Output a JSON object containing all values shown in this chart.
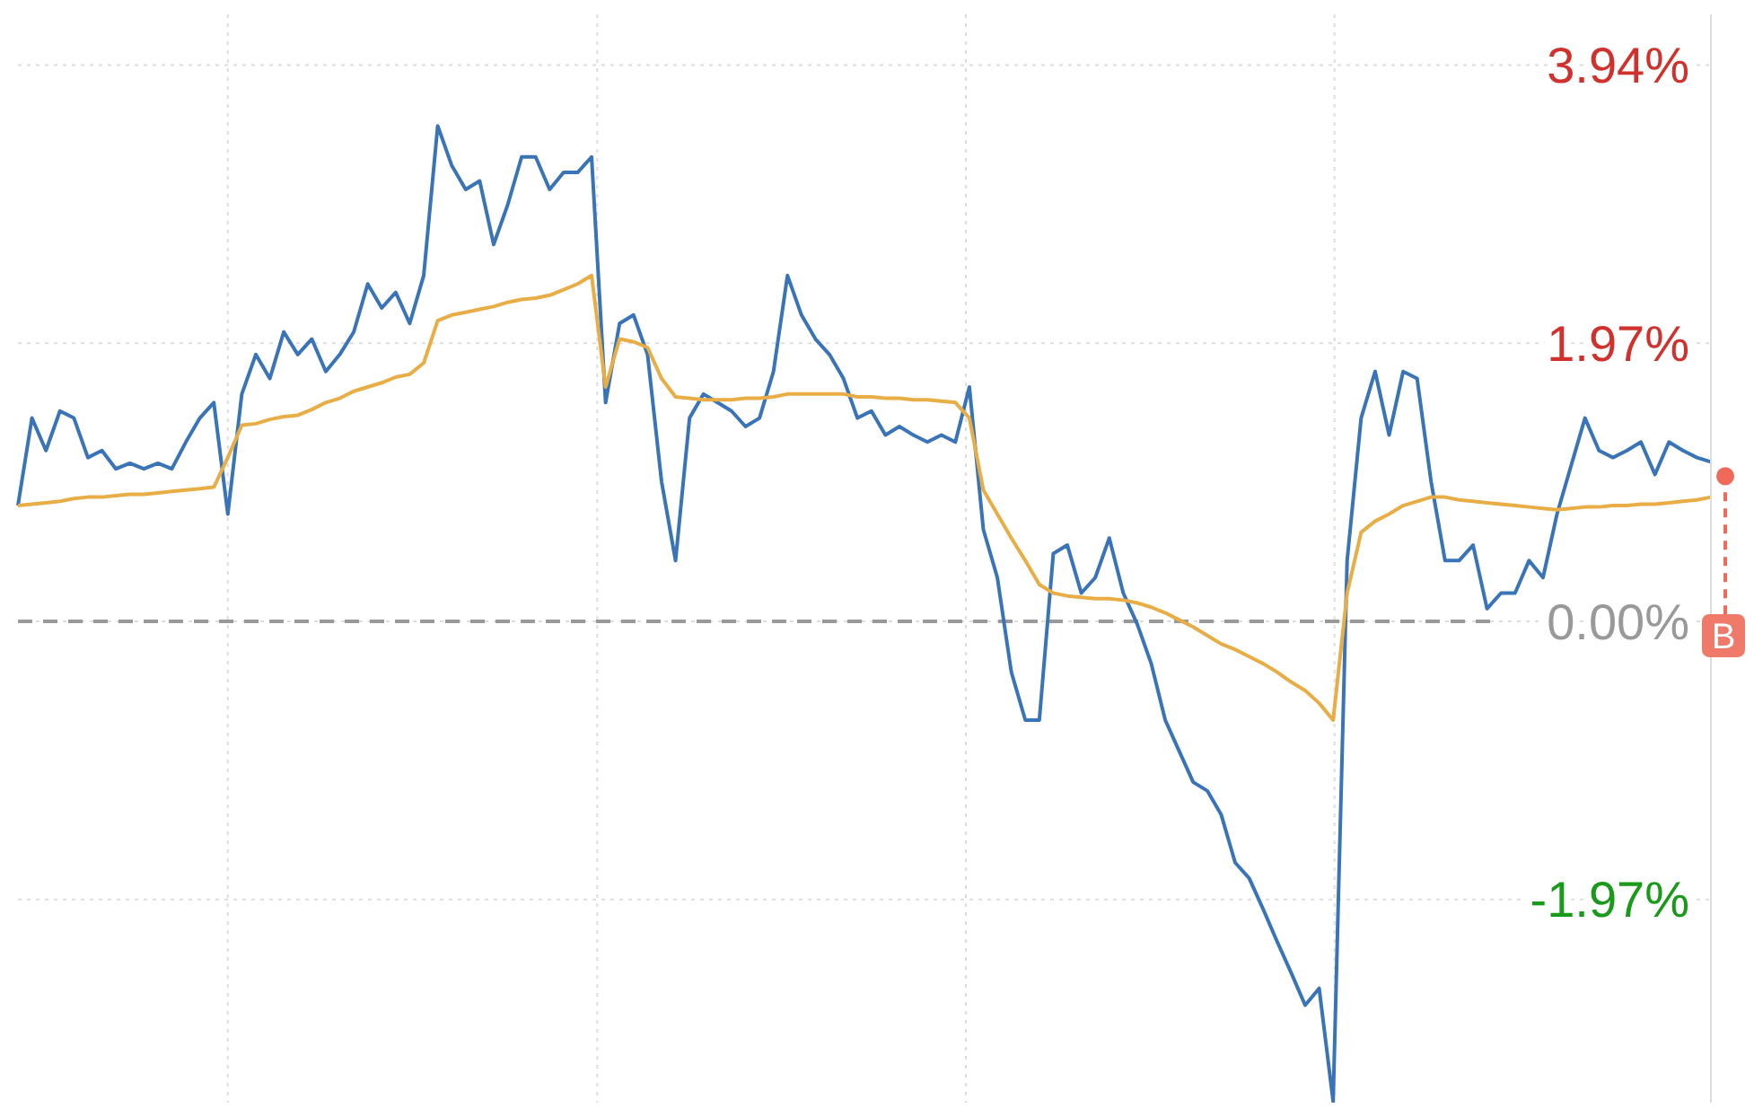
{
  "chart_data": {
    "type": "line",
    "categories": [
      null,
      null,
      null,
      null,
      null,
      null,
      null,
      null,
      null,
      null,
      null,
      null,
      null,
      null,
      null,
      null,
      null,
      null,
      null,
      null,
      null,
      null,
      null,
      null,
      null,
      null,
      null,
      null,
      null,
      null,
      null,
      null,
      null,
      null,
      null,
      null,
      null,
      null,
      null,
      null,
      null,
      null,
      null,
      null,
      null,
      null,
      null,
      null,
      null,
      null,
      null,
      null,
      null,
      null,
      null,
      null,
      null,
      null,
      null,
      null,
      null,
      null,
      null,
      null,
      null,
      null,
      null,
      null,
      null,
      null,
      null,
      null,
      null,
      null,
      null,
      null,
      null,
      null,
      null,
      null,
      null,
      null,
      null,
      null,
      null,
      null,
      null,
      null,
      null,
      null,
      null,
      null,
      null,
      null,
      null,
      null,
      null,
      null,
      null,
      null,
      null,
      null,
      null,
      null,
      null,
      null,
      null,
      null,
      null,
      null,
      null,
      null,
      null,
      null,
      null,
      null,
      null,
      null,
      null,
      null,
      null,
      null
    ],
    "series": [
      {
        "color": "#3a74b8",
        "values": [
          0.82,
          1.44,
          1.21,
          1.49,
          1.44,
          1.16,
          1.21,
          1.08,
          1.12,
          1.08,
          1.12,
          1.08,
          1.27,
          1.44,
          1.55,
          0.76,
          1.61,
          1.89,
          1.72,
          2.05,
          1.89,
          2.0,
          1.77,
          1.89,
          2.05,
          2.39,
          2.22,
          2.33,
          2.11,
          2.45,
          3.51,
          3.23,
          3.06,
          3.12,
          2.67,
          2.95,
          3.29,
          3.29,
          3.06,
          3.18,
          3.18,
          3.29,
          1.55,
          2.11,
          2.17,
          1.89,
          0.99,
          0.43,
          1.44,
          1.61,
          1.55,
          1.49,
          1.38,
          1.44,
          1.77,
          2.45,
          2.17,
          2.0,
          1.89,
          1.72,
          1.44,
          1.49,
          1.32,
          1.38,
          1.32,
          1.27,
          1.32,
          1.27,
          1.66,
          0.65,
          0.31,
          -0.36,
          -0.7,
          -0.7,
          0.48,
          0.54,
          0.2,
          0.31,
          0.59,
          0.2,
          -0.02,
          -0.3,
          -0.7,
          -0.92,
          -1.14,
          -1.2,
          -1.37,
          -1.71,
          -1.82,
          -2.04,
          -2.27,
          -2.49,
          -2.72,
          -2.6,
          -3.4,
          0.43,
          1.44,
          1.77,
          1.32,
          1.77,
          1.72,
          0.99,
          0.43,
          0.43,
          0.54,
          0.09,
          0.2,
          0.2,
          0.43,
          0.31,
          0.76,
          1.1,
          1.44,
          1.21,
          1.16,
          1.21,
          1.27,
          1.04,
          1.27,
          1.21,
          1.16,
          1.13
        ]
      },
      {
        "color": "#e8ad45",
        "values": [
          0.82,
          0.83,
          0.84,
          0.85,
          0.87,
          0.88,
          0.88,
          0.89,
          0.9,
          0.9,
          0.91,
          0.92,
          0.93,
          0.94,
          0.95,
          1.16,
          1.39,
          1.4,
          1.43,
          1.45,
          1.46,
          1.5,
          1.55,
          1.58,
          1.63,
          1.66,
          1.69,
          1.73,
          1.75,
          1.83,
          2.13,
          2.17,
          2.19,
          2.21,
          2.23,
          2.26,
          2.28,
          2.29,
          2.31,
          2.35,
          2.39,
          2.45,
          1.66,
          2.0,
          1.98,
          1.94,
          1.72,
          1.59,
          1.58,
          1.57,
          1.57,
          1.57,
          1.58,
          1.58,
          1.59,
          1.61,
          1.61,
          1.61,
          1.61,
          1.61,
          1.59,
          1.59,
          1.58,
          1.58,
          1.57,
          1.57,
          1.56,
          1.55,
          1.44,
          0.93,
          0.76,
          0.59,
          0.43,
          0.26,
          0.2,
          0.18,
          0.17,
          0.16,
          0.16,
          0.15,
          0.13,
          0.1,
          0.06,
          0.01,
          -0.04,
          -0.1,
          -0.16,
          -0.2,
          -0.25,
          -0.3,
          -0.36,
          -0.43,
          -0.49,
          -0.58,
          -0.7,
          0.2,
          0.63,
          0.71,
          0.76,
          0.82,
          0.85,
          0.88,
          0.88,
          0.86,
          0.85,
          0.84,
          0.83,
          0.82,
          0.81,
          0.8,
          0.79,
          0.8,
          0.81,
          0.81,
          0.82,
          0.82,
          0.83,
          0.83,
          0.84,
          0.85,
          0.86,
          0.88
        ]
      }
    ],
    "ylim": [
      -3.41,
      4.3
    ],
    "yticks": [
      {
        "value": 3.94,
        "label": "3.94%"
      },
      {
        "value": 1.97,
        "label": "1.97%"
      },
      {
        "value": 0,
        "label": "0.00%"
      },
      {
        "value": -1.97,
        "label": "-1.97%"
      }
    ],
    "ref_lines": [
      {
        "axis": "y",
        "value": 0,
        "color": "#999999",
        "line_style": "dashed"
      }
    ],
    "annotations": [
      "B"
    ],
    "grid": true,
    "legend": false,
    "marker": "none",
    "line_style": "solid",
    "tick_labels": "y"
  }
}
